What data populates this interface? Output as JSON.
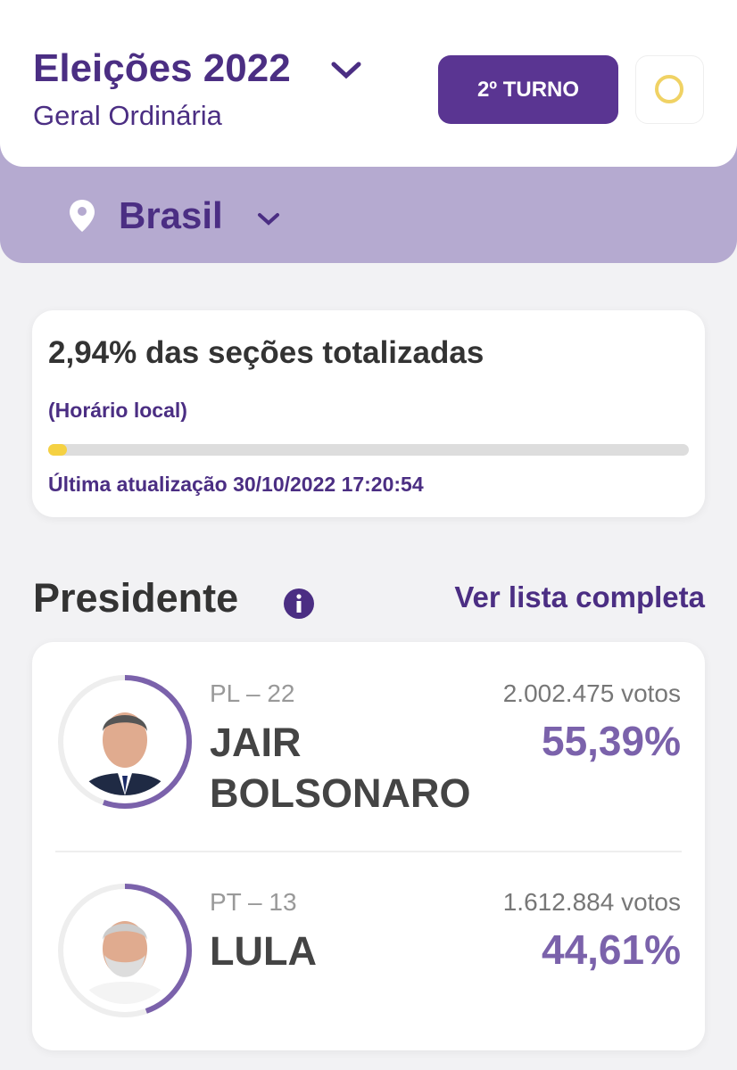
{
  "header": {
    "title": "Eleições 2022",
    "subtitle": "Geral Ordinária",
    "round_button": "2º TURNO",
    "location": "Brasil"
  },
  "status": {
    "title": "2,94% das seções totalizadas",
    "progress": 2.94,
    "note": "(Horário local)",
    "updated": "Última atualização 30/10/2022 17:20:54"
  },
  "section": {
    "title": "Presidente",
    "link": "Ver lista completa"
  },
  "candidates": [
    {
      "party": "PL – 22",
      "name": "JAIR BOLSONARO",
      "votes": "2.002.475 votos",
      "percent": 55.39,
      "percent_label": "55,39%"
    },
    {
      "party": "PT – 13",
      "name": "LULA",
      "votes": "1.612.884 votos",
      "percent": 44.61,
      "percent_label": "44,61%"
    }
  ]
}
